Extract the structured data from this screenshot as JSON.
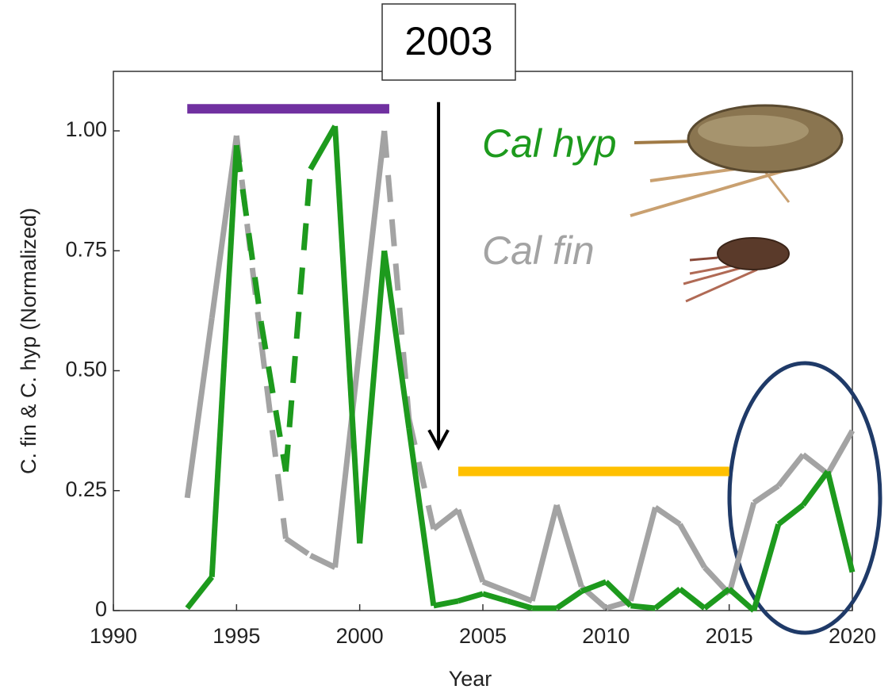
{
  "chart_data": {
    "type": "line",
    "xlabel": "Year",
    "ylabel": "C. fin & C. hyp (Normalized)",
    "x": [
      1993,
      1994,
      1995,
      1996,
      1997,
      1998,
      1999,
      2000,
      2001,
      2002,
      2003,
      2004,
      2005,
      2006,
      2007,
      2008,
      2009,
      2010,
      2011,
      2012,
      2013,
      2014,
      2015,
      2016,
      2017,
      2018,
      2019,
      2020
    ],
    "series": [
      {
        "name": "Cal fin",
        "color": "#a3a3a3",
        "values": [
          0.235,
          0.61,
          0.99,
          0.56,
          0.15,
          0.115,
          0.09,
          0.55,
          1.0,
          0.4,
          0.17,
          0.21,
          0.06,
          0.04,
          0.02,
          0.22,
          0.05,
          0.005,
          0.02,
          0.215,
          0.18,
          0.09,
          0.035,
          0.225,
          0.26,
          0.325,
          0.285,
          0.375
        ],
        "dashed": [
          false,
          false,
          true,
          true,
          true,
          false,
          false,
          false,
          true,
          true,
          false,
          false,
          true,
          true,
          false,
          false,
          false,
          false,
          false,
          false,
          false,
          false,
          false,
          false,
          false,
          false,
          false,
          false
        ]
      },
      {
        "name": "Cal hyp",
        "color": "#1d9a1d",
        "values": [
          0.005,
          0.07,
          0.97,
          0.6,
          0.29,
          0.92,
          1.01,
          0.14,
          0.75,
          0.38,
          0.01,
          0.02,
          0.035,
          0.02,
          0.005,
          0.005,
          0.04,
          0.06,
          0.01,
          0.005,
          0.045,
          0.005,
          0.045,
          0.0,
          0.18,
          0.22,
          0.29,
          0.08
        ],
        "dashed": [
          false,
          false,
          true,
          true,
          true,
          false,
          false,
          false,
          false,
          false,
          true,
          true,
          true,
          false,
          false,
          false,
          false,
          false,
          false,
          false,
          false,
          false,
          false,
          false,
          false,
          false,
          false,
          false
        ]
      }
    ],
    "xlim": [
      1990,
      2020
    ],
    "xticks": [
      1990,
      1995,
      2000,
      2005,
      2010,
      2015,
      2020
    ],
    "ylim": [
      0,
      1.124
    ],
    "yticks": [
      0,
      0.25,
      {
        "value": 0.5,
        "label": "0.50"
      },
      0.75,
      {
        "value": 1.0,
        "label": "1.00"
      }
    ],
    "periods": [
      {
        "x": [
          1993,
          2001.2
        ],
        "y": 1.046,
        "color": "#7030a0"
      },
      {
        "x": [
          2004,
          2015
        ],
        "y": 0.29,
        "color": "#ffc000"
      }
    ],
    "event": {
      "label": "2003",
      "x": 2003.2,
      "y": [
        1.06,
        0.34
      ]
    }
  }
}
